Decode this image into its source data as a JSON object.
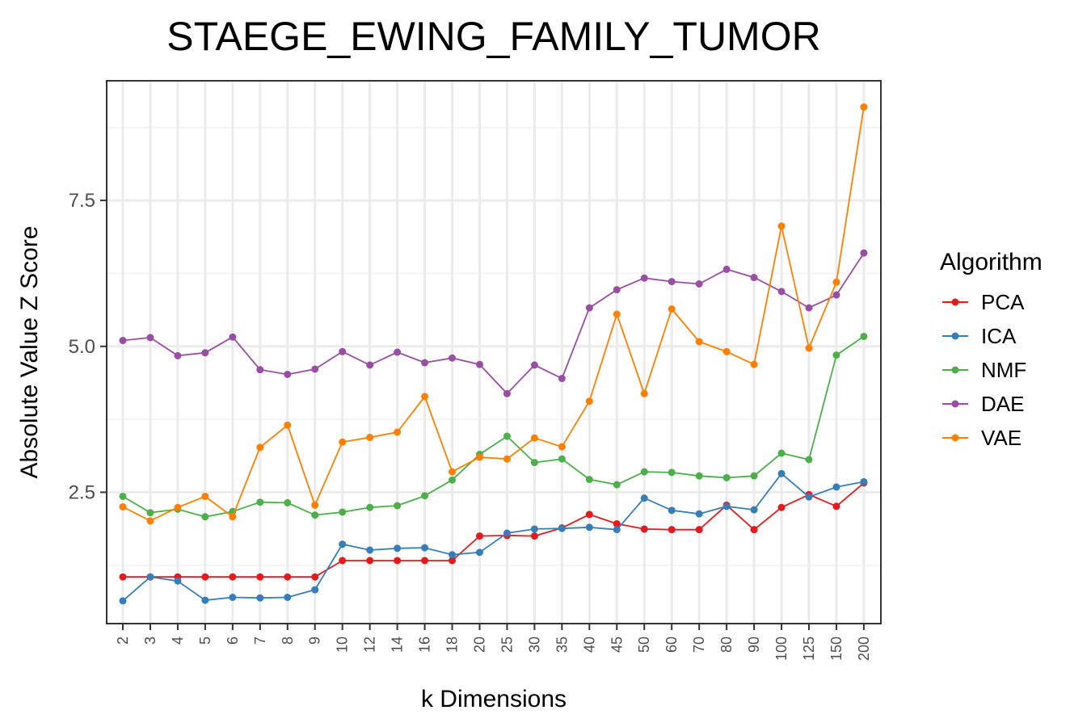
{
  "chart_data": {
    "type": "line",
    "title": "STAEGE_EWING_FAMILY_TUMOR",
    "xlabel": "k Dimensions",
    "ylabel": "Absolute Value Z Score",
    "categories": [
      "2",
      "3",
      "4",
      "5",
      "6",
      "7",
      "8",
      "9",
      "10",
      "12",
      "14",
      "16",
      "18",
      "20",
      "25",
      "30",
      "35",
      "40",
      "45",
      "50",
      "60",
      "70",
      "80",
      "90",
      "100",
      "125",
      "150",
      "200"
    ],
    "y_ticks": [
      2.5,
      5.0,
      7.5
    ],
    "y_tick_labels": [
      "2.5",
      "5.0",
      "7.5"
    ],
    "ylim": [
      0.25,
      9.55
    ],
    "grid": true,
    "legend": {
      "title": "Algorithm",
      "position": "right"
    },
    "series": [
      {
        "name": "PCA",
        "color": "#e41a1c",
        "values": [
          1.05,
          1.05,
          1.05,
          1.05,
          1.05,
          1.05,
          1.05,
          1.05,
          1.33,
          1.33,
          1.33,
          1.33,
          1.33,
          1.75,
          1.76,
          1.75,
          1.89,
          2.12,
          1.96,
          1.87,
          1.86,
          1.86,
          2.28,
          1.86,
          2.24,
          2.46,
          2.26,
          2.66
        ]
      },
      {
        "name": "ICA",
        "color": "#377eb8",
        "values": [
          0.64,
          1.05,
          0.98,
          0.65,
          0.7,
          0.69,
          0.7,
          0.83,
          1.61,
          1.51,
          1.54,
          1.55,
          1.43,
          1.47,
          1.8,
          1.87,
          1.88,
          1.9,
          1.86,
          2.4,
          2.19,
          2.13,
          2.26,
          2.2,
          2.82,
          2.42,
          2.59,
          2.68
        ]
      },
      {
        "name": "NMF",
        "color": "#4daf4a",
        "values": [
          2.43,
          2.15,
          2.21,
          2.08,
          2.17,
          2.33,
          2.32,
          2.11,
          2.16,
          2.24,
          2.27,
          2.44,
          2.71,
          3.15,
          3.46,
          3.01,
          3.07,
          2.72,
          2.63,
          2.85,
          2.84,
          2.78,
          2.75,
          2.78,
          3.17,
          3.06,
          4.85,
          5.17
        ]
      },
      {
        "name": "DAE",
        "color": "#984ea3",
        "values": [
          5.1,
          5.15,
          4.84,
          4.89,
          5.16,
          4.6,
          4.52,
          4.61,
          4.91,
          4.68,
          4.9,
          4.72,
          4.8,
          4.69,
          4.19,
          4.68,
          4.45,
          5.66,
          5.97,
          6.17,
          6.11,
          6.07,
          6.32,
          6.18,
          5.94,
          5.66,
          5.88,
          6.6
        ]
      },
      {
        "name": "VAE",
        "color": "#ff7f00",
        "values": [
          2.25,
          2.01,
          2.24,
          2.43,
          2.08,
          3.27,
          3.65,
          2.28,
          3.36,
          3.44,
          3.53,
          4.14,
          2.85,
          3.1,
          3.07,
          3.43,
          3.28,
          4.06,
          5.55,
          4.19,
          5.64,
          5.08,
          4.91,
          4.69,
          7.06,
          4.97,
          6.1,
          9.1
        ]
      }
    ]
  }
}
